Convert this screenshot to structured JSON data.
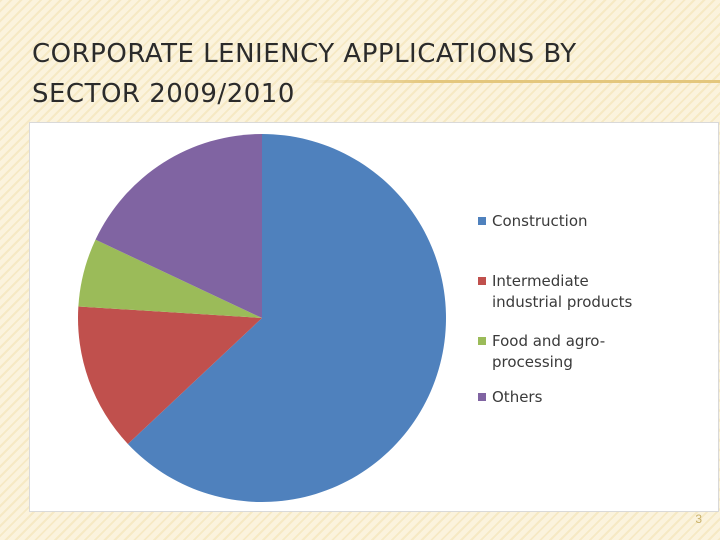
{
  "slide": {
    "title_line1": "CORPORATE LENIENCY APPLICATIONS BY",
    "title_line2": "SECTOR 2009/2010",
    "page_number": "3"
  },
  "chart_data": {
    "type": "pie",
    "title": "",
    "start_angle_deg": 0,
    "direction": "clockwise",
    "legend_position": "right",
    "slices": [
      {
        "label": "Construction",
        "value": 63,
        "color": "#4f81bd"
      },
      {
        "label": "Intermediate\nindustrial products",
        "value": 13,
        "color": "#c0504d"
      },
      {
        "label": "Food and agro-\nprocessing",
        "value": 6,
        "color": "#9bbb59"
      },
      {
        "label": "Others",
        "value": 18,
        "color": "#8064a2"
      }
    ]
  }
}
